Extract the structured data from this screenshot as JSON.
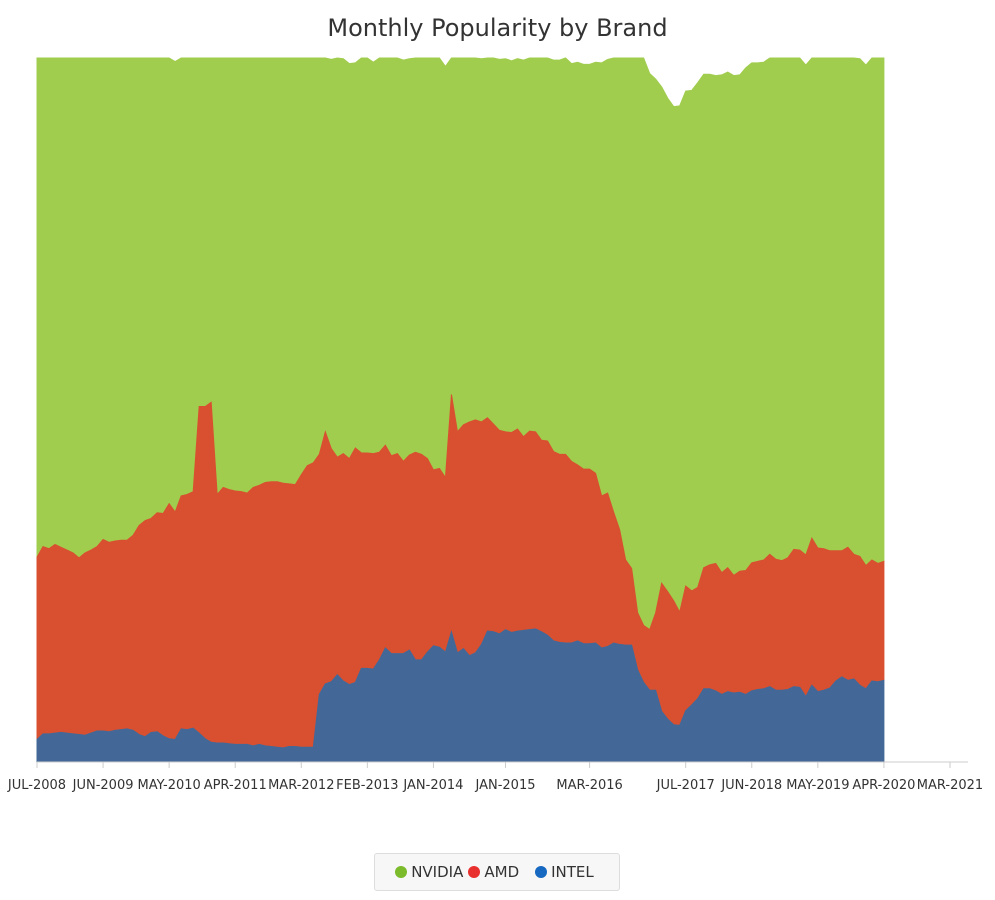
{
  "chart_data": {
    "type": "area",
    "stacking": "percent",
    "title": "Monthly Popularity by Brand",
    "xlabel": "",
    "ylabel": "",
    "ylim": [
      0,
      100
    ],
    "grid": false,
    "legend_position": "bottom",
    "x_start": "JUL-2008",
    "x_end": "JUN-2021",
    "x_ticks": [
      "JUL-2008",
      "JUN-2009",
      "MAY-2010",
      "APR-2011",
      "MAR-2012",
      "FEB-2013",
      "JAN-2014",
      "JAN-2015",
      "MAR-2016",
      "JUL-2017",
      "JUN-2018",
      "MAY-2019",
      "APR-2020",
      "MAR-2021"
    ],
    "series": [
      {
        "name": "NVIDIA",
        "color": "#a0cd4e",
        "values": [
          71.9,
          71.1,
          71.4,
          70.9,
          71.3,
          71.6,
          71.9,
          72.8,
          71.9,
          71.6,
          71.4,
          69.6,
          69.9,
          69.8,
          69.9,
          70.0,
          69.1,
          67.1,
          66.5,
          66.8,
          65.9,
          65.6,
          63.4,
          64.0,
          63.5,
          63.2,
          62.7,
          50.7,
          50.1,
          49.2,
          62.3,
          61.3,
          61.7,
          61.8,
          61.8,
          62.0,
          61.2,
          60.9,
          60.5,
          60.2,
          60.2,
          60.4,
          60.5,
          60.7,
          59.2,
          57.9,
          57.5,
          56.3,
          53.5,
          55.3,
          57.3,
          56.1,
          56.1,
          54.7,
          56.1,
          56.1,
          55.6,
          56.0,
          55.4,
          57.2,
          57.1,
          57.0,
          56.3,
          56.2,
          57.0,
          57.7,
          58.5,
          58.6,
          58.4,
          48.9,
          53.1,
          52.4,
          51.7,
          51.5,
          51.6,
          52.1,
          52.3,
          52.7,
          53.0,
          52.8,
          52.6,
          53.5,
          53.2,
          53.4,
          54.4,
          55.4,
          55.6,
          56.0,
          56.3,
          56.5,
          57.2,
          57.5,
          57.5,
          58.4,
          61.5,
          61.6,
          64.7,
          68.1,
          77.2,
          79.6,
          79.6,
          80.6,
          79.0,
          75.8,
          70.5,
          70.1,
          70.2,
          71.9,
          70.3,
          71.1,
          71.7,
          70.1,
          69.7,
          69.3,
          70.7,
          70.4,
          71.0,
          70.5,
          71.4,
          71.0,
          70.8,
          70.7,
          70.8,
          71.2,
          71.5,
          71.0,
          70.2,
          70.2,
          69.6,
          69.2,
          69.6,
          70.1,
          70.3,
          70.0,
          70.0,
          70.1,
          72.8,
          70.7,
          71.1,
          71.3,
          71.8,
          71.5
        ]
      },
      {
        "name": "AMD",
        "color": "#d85030",
        "values": [
          25.9,
          26.6,
          26.3,
          26.8,
          26.3,
          26.0,
          25.7,
          25.1,
          25.9,
          26.0,
          26.2,
          27.2,
          26.9,
          26.9,
          26.9,
          26.8,
          27.7,
          29.7,
          30.7,
          30.4,
          31.1,
          31.6,
          33.4,
          32.3,
          33.1,
          33.4,
          33.6,
          46.4,
          47.2,
          48.3,
          35.3,
          36.3,
          36.1,
          36.0,
          35.9,
          35.7,
          36.7,
          36.8,
          37.4,
          37.6,
          37.7,
          37.6,
          37.3,
          37.2,
          38.7,
          40.0,
          40.4,
          34.1,
          35.8,
          33.1,
          30.9,
          32.3,
          32.1,
          33.3,
          30.6,
          30.6,
          30.6,
          29.5,
          28.8,
          28.1,
          28.4,
          27.3,
          27.7,
          29.5,
          29.2,
          27.5,
          25.0,
          25.4,
          24.8,
          33.7,
          31.4,
          31.8,
          33.2,
          33.1,
          31.6,
          30.3,
          29.5,
          28.9,
          28.1,
          28.4,
          28.7,
          27.5,
          28.2,
          28.0,
          27.2,
          27.6,
          26.9,
          26.7,
          26.8,
          25.8,
          25.0,
          24.8,
          24.8,
          24.1,
          21.6,
          21.8,
          18.6,
          16.3,
          12.1,
          10.9,
          8.1,
          8.1,
          8.6,
          11.0,
          18.2,
          18.1,
          17.6,
          16.1,
          17.7,
          16.2,
          15.8,
          17.2,
          17.6,
          18.1,
          17.3,
          17.6,
          16.7,
          17.2,
          17.6,
          18.2,
          18.2,
          18.3,
          18.8,
          18.6,
          18.4,
          18.7,
          19.5,
          19.5,
          20.1,
          20.9,
          20.4,
          20.1,
          19.5,
          18.5,
          17.9,
          18.9,
          17.7,
          18.3,
          17.5,
          17.2,
          16.8,
          16.9
        ]
      },
      {
        "name": "INTEL",
        "color": "#436898",
        "values": [
          3.2,
          4.0,
          4.0,
          4.1,
          4.2,
          4.1,
          4.0,
          3.9,
          3.8,
          4.1,
          4.4,
          4.4,
          4.3,
          4.5,
          4.6,
          4.7,
          4.5,
          3.9,
          3.6,
          4.2,
          4.3,
          3.7,
          3.3,
          3.2,
          4.7,
          4.6,
          4.8,
          4.1,
          3.3,
          2.8,
          2.7,
          2.7,
          2.6,
          2.5,
          2.5,
          2.5,
          2.3,
          2.5,
          2.3,
          2.2,
          2.1,
          2.0,
          2.2,
          2.2,
          2.1,
          2.1,
          2.1,
          9.6,
          11.1,
          11.4,
          12.4,
          11.5,
          11.0,
          11.3,
          13.3,
          13.3,
          13.2,
          14.5,
          16.2,
          15.4,
          15.4,
          15.4,
          15.9,
          14.5,
          14.5,
          15.6,
          16.5,
          16.3,
          15.6,
          18.5,
          15.5,
          16.1,
          15.1,
          15.5,
          16.7,
          18.6,
          18.5,
          18.2,
          18.8,
          18.4,
          18.6,
          18.7,
          18.8,
          18.9,
          18.5,
          18.0,
          17.2,
          17.0,
          16.9,
          16.9,
          17.2,
          16.8,
          16.8,
          16.9,
          16.2,
          16.4,
          16.9,
          16.7,
          16.6,
          16.6,
          13.1,
          11.3,
          10.2,
          10.2,
          7.2,
          6.1,
          5.3,
          5.2,
          7.3,
          8.1,
          9.0,
          10.4,
          10.4,
          10.1,
          9.6,
          10.0,
          9.8,
          9.9,
          9.6,
          10.1,
          10.3,
          10.4,
          10.7,
          10.2,
          10.2,
          10.3,
          10.7,
          10.6,
          9.3,
          10.9,
          10.0,
          10.2,
          10.5,
          11.5,
          12.1,
          11.6,
          11.8,
          10.9,
          10.4,
          11.5,
          11.4,
          11.6
        ]
      }
    ]
  }
}
